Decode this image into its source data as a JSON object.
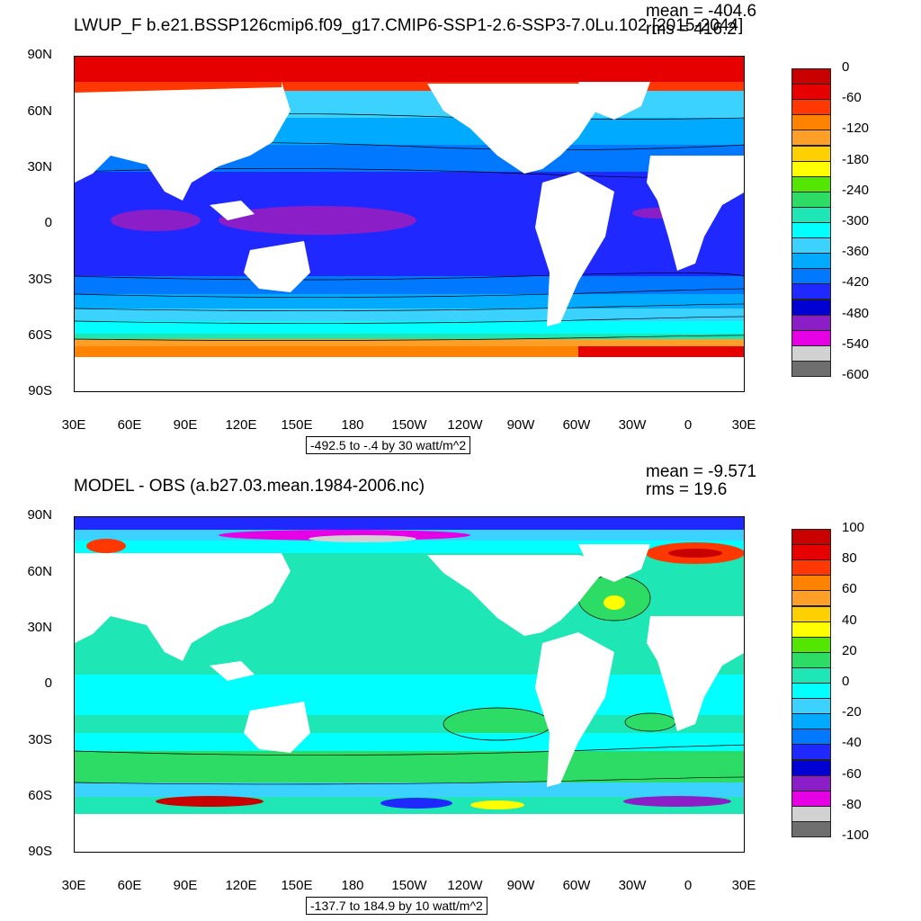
{
  "panels": [
    {
      "title": "LWUP_F b.e21.BSSP126cmip6.f09_g17.CMIP6-SSP1-2.6-SSP3-7.0Lu.102 [2015-2044]",
      "mean": "mean = -404.6",
      "rms": "rms = 416.2",
      "range": "-492.5 to -.4 by 30 watt/m^2",
      "colorbar": {
        "labels": [
          "0",
          "-60",
          "-120",
          "-180",
          "-240",
          "-300",
          "-360",
          "-420",
          "-480",
          "-540",
          "-600"
        ],
        "colors": [
          "#c80000",
          "#e60000",
          "#ff3700",
          "#ff8200",
          "#ff9f28",
          "#ffd000",
          "#ffff00",
          "#55e600",
          "#2ddc64",
          "#1ee6b4",
          "#00ffff",
          "#3cd2ff",
          "#00aaff",
          "#0078ff",
          "#1e28ff",
          "#0000d2",
          "#8c1ec8",
          "#e600e6",
          "#d2d2d2",
          "#6e6e6e"
        ]
      }
    },
    {
      "title": "MODEL - OBS (a.b27.03.mean.1984-2006.nc)",
      "mean": "mean = -9.571",
      "rms": "rms = 19.6",
      "range": "-137.7 to 184.9 by 10 watt/m^2",
      "colorbar": {
        "labels": [
          "100",
          "80",
          "60",
          "40",
          "20",
          "0",
          "-20",
          "-40",
          "-60",
          "-80",
          "-100"
        ],
        "colors": [
          "#c80000",
          "#e60000",
          "#ff3700",
          "#ff8200",
          "#ff9f28",
          "#ffd000",
          "#ffff00",
          "#55e600",
          "#2ddc64",
          "#1ee6b4",
          "#00ffff",
          "#3cd2ff",
          "#00aaff",
          "#0078ff",
          "#1e28ff",
          "#0000d2",
          "#8c1ec8",
          "#e600e6",
          "#d2d2d2",
          "#6e6e6e"
        ]
      }
    }
  ],
  "axes": {
    "lat_labels": [
      "90N",
      "60N",
      "30N",
      "0",
      "30S",
      "60S",
      "90S"
    ],
    "lon_labels": [
      "30E",
      "60E",
      "90E",
      "120E",
      "150E",
      "180",
      "150W",
      "120W",
      "90W",
      "60W",
      "30W",
      "0",
      "30E"
    ]
  }
}
